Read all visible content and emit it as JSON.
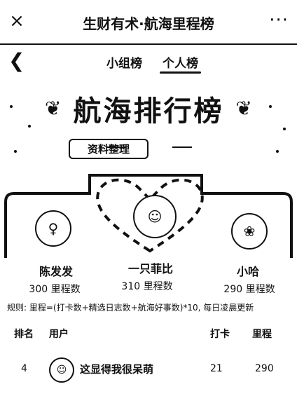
{
  "header": {
    "title": "生财有术·航海里程榜",
    "close_glyph": "×",
    "more_glyph": "···"
  },
  "nav": {
    "back_glyph": "❮",
    "tabs": [
      {
        "label": "小组榜"
      },
      {
        "label": "个人榜"
      }
    ]
  },
  "banner": {
    "title": "航海排行榜",
    "subtitle": "资料整理"
  },
  "podium": [
    {
      "name": "陈发发",
      "miles": "300 里程数"
    },
    {
      "name": "一只菲比",
      "miles": "310 里程数"
    },
    {
      "name": "小哈",
      "miles": "290 里程数"
    }
  ],
  "rules_text": "规则: 里程=(打卡数+精选日志数+航海好事数)*10, 每日凌晨更新",
  "table": {
    "headers": {
      "rank": "排名",
      "user": "用户",
      "checkin": "打卡",
      "miles": "里程"
    },
    "rows": [
      {
        "rank": "4",
        "user": "这显得我很呆萌",
        "checkin": "21",
        "miles": "290"
      }
    ]
  }
}
